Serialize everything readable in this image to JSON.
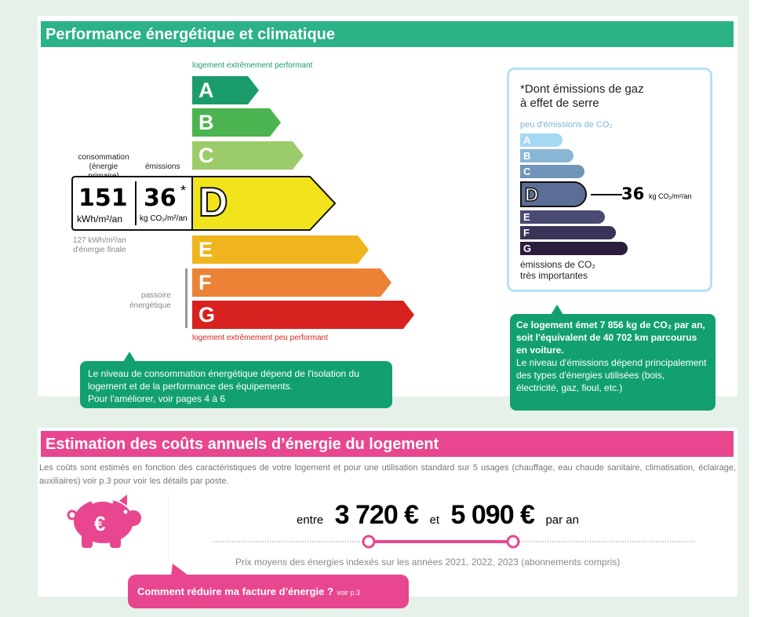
{
  "energy": {
    "title": "Performance énergétique et climatique",
    "top_label": "logement extrêmement performant",
    "bottom_label": "logement extrêmement peu performant",
    "classes": [
      "A",
      "B",
      "C",
      "D",
      "E",
      "F",
      "G"
    ],
    "class_colors": [
      "#1b9c6b",
      "#4bb34f",
      "#9ccc6a",
      "#f1e41c",
      "#f0b41c",
      "#eb8235",
      "#d7221f"
    ],
    "current_class": "D",
    "consumption_label": "consommation",
    "consumption_sub": "(énergie primaire)",
    "emissions_label": "émissions",
    "consumption_value": "151",
    "consumption_unit": "kWh/m²/an",
    "emissions_value": "36",
    "emissions_star": "*",
    "emissions_unit": "kg CO₂/m²/an",
    "final_energy_1": "127 kWh/m²/an",
    "final_energy_2": "d'énergie finale",
    "passoire_1": "passoire",
    "passoire_2": "énergétique",
    "callout_1": "Le niveau de consommation énergétique dépend de l'isolation du",
    "callout_2": "logement et de la performance des équipements.",
    "callout_3": "Pour l'améliorer, voir pages 4 à 6"
  },
  "ghg": {
    "title_1": "*Dont émissions de gaz",
    "title_2": "à effet de serre",
    "top_label": "peu d'émissions de CO₂",
    "classes": [
      "A",
      "B",
      "C",
      "D",
      "E",
      "F",
      "G"
    ],
    "class_colors": [
      "#a4d9f3",
      "#8ab6d6",
      "#7195b8",
      "#5b6e95",
      "#4a4b72",
      "#3a3558",
      "#2b1d3c"
    ],
    "current_class": "D",
    "value": "36",
    "unit": "kg CO₂/m²/an",
    "bottom_label_1": "émissions de CO₂",
    "bottom_label_2": "très importantes",
    "callout_bold": "Ce logement émet 7 856 kg de CO₂ par an, soit l'équivalent de 40 702 km parcourus en voiture.",
    "callout_text": "Le niveau d'émissions dépend principalement des types d'énergies utilisées (bois, électricité, gaz, fioul, etc.)"
  },
  "costs": {
    "title": "Estimation des coûts annuels d’énergie du logement",
    "description": "Les coûts sont estimés en fonction des caractéristiques de votre logement et pour une utilisation standard sur 5 usages (chauffage, eau chaude sanitaire, climatisation, éclairage, auxiliaires) voir p.3 pour voir les détails par poste.",
    "between": "entre",
    "min": "3 720 €",
    "and": "et",
    "max": "5 090 €",
    "per_year": "par an",
    "prices_note": "Prix moyens des énergies indexés sur les années 2021, 2022, 2023 (abonnements compris)",
    "tip": "Comment réduire ma facture d’énergie ?",
    "tip_link": "voir p.3",
    "accent": "#e8478f"
  }
}
